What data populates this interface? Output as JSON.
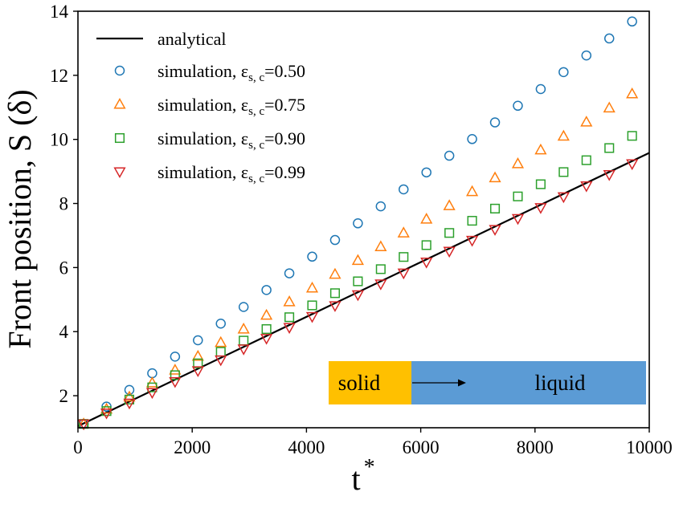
{
  "chart_data": {
    "type": "scatter",
    "xlabel": "t",
    "xlabel_sup": "*",
    "ylabel": "Front position, S (δ)",
    "xlim": [
      0,
      10000
    ],
    "ylim": [
      1,
      14
    ],
    "xticks": [
      0,
      2000,
      4000,
      6000,
      8000,
      10000
    ],
    "yticks": [
      2,
      4,
      6,
      8,
      10,
      12,
      14
    ],
    "grid": false,
    "legend_position": "top-left",
    "analytical": {
      "name": "analytical",
      "style": "line",
      "color": "#000000",
      "x": [
        0,
        10000
      ],
      "y": [
        1.05,
        9.58
      ]
    },
    "series": [
      {
        "name_prefix": "simulation, ε",
        "name_sub": "s, c",
        "name_suffix": "=0.50",
        "marker": "circle",
        "color": "#1f77b4",
        "x": [
          100,
          500,
          900,
          1300,
          1700,
          2100,
          2500,
          2900,
          3300,
          3700,
          4100,
          4500,
          4900,
          5300,
          5700,
          6100,
          6500,
          6900,
          7300,
          7700,
          8100,
          8500,
          8900,
          9300,
          9700
        ],
        "y": [
          1.12,
          1.66,
          2.18,
          2.7,
          3.22,
          3.73,
          4.25,
          4.77,
          5.3,
          5.82,
          6.34,
          6.86,
          7.38,
          7.91,
          8.44,
          8.97,
          9.49,
          10.01,
          10.53,
          11.05,
          11.57,
          12.1,
          12.62,
          13.15,
          13.68
        ]
      },
      {
        "name_prefix": "simulation, ε",
        "name_sub": "s, c",
        "name_suffix": "=0.75",
        "marker": "triangle-up",
        "color": "#ff7f0e",
        "x": [
          100,
          500,
          900,
          1300,
          1700,
          2100,
          2500,
          2900,
          3300,
          3700,
          4100,
          4500,
          4900,
          5300,
          5700,
          6100,
          6500,
          6900,
          7300,
          7700,
          8100,
          8500,
          8900,
          9300,
          9700
        ],
        "y": [
          1.12,
          1.58,
          1.96,
          2.4,
          2.8,
          3.23,
          3.66,
          4.08,
          4.51,
          4.93,
          5.36,
          5.79,
          6.22,
          6.65,
          7.08,
          7.51,
          7.93,
          8.37,
          8.8,
          9.24,
          9.67,
          10.1,
          10.54,
          10.98,
          11.42
        ]
      },
      {
        "name_prefix": "simulation, ε",
        "name_sub": "s, c",
        "name_suffix": "=0.90",
        "marker": "square",
        "color": "#2ca02c",
        "x": [
          100,
          500,
          900,
          1300,
          1700,
          2100,
          2500,
          2900,
          3300,
          3700,
          4100,
          4500,
          4900,
          5300,
          5700,
          6100,
          6500,
          6900,
          7300,
          7700,
          8100,
          8500,
          8900,
          9300,
          9700
        ],
        "y": [
          1.12,
          1.52,
          1.88,
          2.26,
          2.64,
          3.01,
          3.37,
          3.72,
          4.08,
          4.45,
          4.82,
          5.2,
          5.57,
          5.95,
          6.33,
          6.7,
          7.08,
          7.46,
          7.84,
          8.22,
          8.6,
          8.98,
          9.35,
          9.73,
          10.11
        ]
      },
      {
        "name_prefix": "simulation, ε",
        "name_sub": "s, c",
        "name_suffix": "=0.99",
        "marker": "triangle-down",
        "color": "#d62728",
        "x": [
          100,
          500,
          900,
          1300,
          1700,
          2100,
          2500,
          2900,
          3300,
          3700,
          4100,
          4500,
          4900,
          5300,
          5700,
          6100,
          6500,
          6900,
          7300,
          7700,
          8100,
          8500,
          8900,
          9300,
          9700
        ],
        "y": [
          1.12,
          1.46,
          1.77,
          2.1,
          2.44,
          2.78,
          3.12,
          3.46,
          3.79,
          4.13,
          4.47,
          4.81,
          5.15,
          5.49,
          5.83,
          6.17,
          6.51,
          6.85,
          7.19,
          7.53,
          7.87,
          8.21,
          8.55,
          8.9,
          9.24
        ]
      }
    ],
    "inset": {
      "left_label": "solid",
      "right_label": "liquid",
      "left_color": "#ffc000",
      "right_color": "#5b9bd5"
    }
  }
}
